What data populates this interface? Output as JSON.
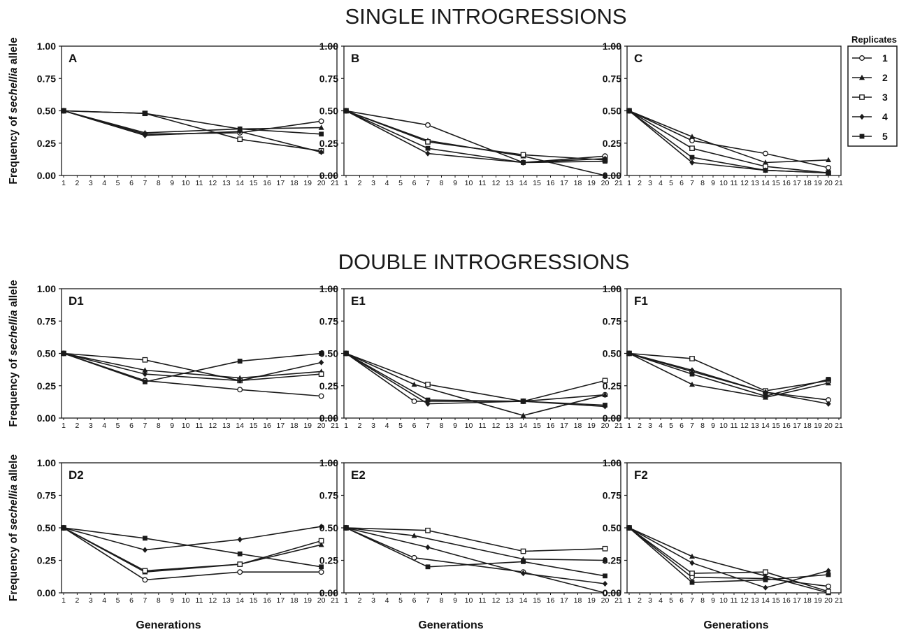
{
  "titles": {
    "single": "SINGLE INTROGRESSIONS",
    "double": "DOUBLE INTROGRESSIONS"
  },
  "y_axis_label": {
    "prefix": "Frequency of ",
    "italic": "sechellia",
    "suffix": " allele"
  },
  "x_axis_label": "Generations",
  "legend": {
    "title": "Replicates",
    "entries": [
      "1",
      "2",
      "3",
      "4",
      "5"
    ],
    "markers": [
      "open-circle",
      "filled-triangle",
      "open-square",
      "filled-diamond",
      "filled-square"
    ]
  },
  "line_color": "#1a1a1a",
  "chart_data": [
    {
      "type": "line",
      "label": "A",
      "x": [
        1,
        7,
        14,
        20
      ],
      "xlim": [
        1,
        21
      ],
      "ylim": [
        0,
        1
      ],
      "yticks": [
        "0.00",
        "0.25",
        "0.50",
        "0.75",
        "1.00"
      ],
      "xticks": [
        "1",
        "2",
        "3",
        "4",
        "5",
        "6",
        "7",
        "8",
        "9",
        "10",
        "11",
        "12",
        "13",
        "14",
        "15",
        "16",
        "17",
        "18",
        "19",
        "20",
        "21"
      ],
      "series": [
        {
          "name": "1",
          "values": [
            0.5,
            0.32,
            0.33,
            0.42
          ]
        },
        {
          "name": "2",
          "values": [
            0.5,
            0.33,
            0.36,
            0.37
          ]
        },
        {
          "name": "3",
          "values": [
            0.5,
            0.48,
            0.28,
            0.19
          ]
        },
        {
          "name": "4",
          "values": [
            0.5,
            0.31,
            0.34,
            0.18
          ]
        },
        {
          "name": "5",
          "values": [
            0.5,
            0.48,
            0.36,
            0.32
          ]
        }
      ]
    },
    {
      "type": "line",
      "label": "B",
      "x": [
        1,
        7,
        14,
        20
      ],
      "xlim": [
        1,
        21
      ],
      "ylim": [
        0,
        1
      ],
      "yticks": [
        "0.00",
        "0.25",
        "0.50",
        "0.75",
        "1.00"
      ],
      "xticks": [
        "1",
        "2",
        "3",
        "4",
        "5",
        "6",
        "7",
        "8",
        "9",
        "10",
        "11",
        "12",
        "13",
        "14",
        "15",
        "16",
        "17",
        "18",
        "19",
        "20",
        "21"
      ],
      "series": [
        {
          "name": "1",
          "values": [
            0.5,
            0.39,
            0.1,
            0.15
          ]
        },
        {
          "name": "2",
          "values": [
            0.5,
            0.27,
            0.15,
            0.0
          ]
        },
        {
          "name": "3",
          "values": [
            0.5,
            0.26,
            0.16,
            0.12
          ]
        },
        {
          "name": "4",
          "values": [
            0.5,
            0.17,
            0.1,
            0.13
          ]
        },
        {
          "name": "5",
          "values": [
            0.5,
            0.21,
            0.1,
            0.11
          ]
        }
      ]
    },
    {
      "type": "line",
      "label": "C",
      "x": [
        1,
        7,
        14,
        20
      ],
      "xlim": [
        1,
        21
      ],
      "ylim": [
        0,
        1
      ],
      "yticks": [
        "0.00",
        "0.25",
        "0.50",
        "0.75",
        "1.00"
      ],
      "xticks": [
        "1",
        "2",
        "3",
        "4",
        "5",
        "6",
        "7",
        "8",
        "9",
        "10",
        "11",
        "12",
        "13",
        "14",
        "15",
        "16",
        "17",
        "18",
        "19",
        "20",
        "21"
      ],
      "series": [
        {
          "name": "1",
          "values": [
            0.5,
            0.27,
            0.17,
            0.06
          ]
        },
        {
          "name": "2",
          "values": [
            0.5,
            0.3,
            0.1,
            0.12
          ]
        },
        {
          "name": "3",
          "values": [
            0.5,
            0.21,
            0.07,
            0.02
          ]
        },
        {
          "name": "4",
          "values": [
            0.5,
            0.1,
            0.04,
            0.02
          ]
        },
        {
          "name": "5",
          "values": [
            0.5,
            0.14,
            0.04,
            0.02
          ]
        }
      ]
    },
    {
      "type": "line",
      "label": "D1",
      "x": [
        1,
        7,
        14,
        20
      ],
      "xlim": [
        1,
        21
      ],
      "ylim": [
        0,
        1
      ],
      "yticks": [
        "0.00",
        "0.25",
        "0.50",
        "0.75",
        "1.00"
      ],
      "xticks": [
        "1",
        "2",
        "3",
        "4",
        "5",
        "6",
        "7",
        "8",
        "9",
        "10",
        "11",
        "12",
        "13",
        "14",
        "15",
        "16",
        "17",
        "18",
        "19",
        "20",
        "21"
      ],
      "series": [
        {
          "name": "1",
          "values": [
            0.5,
            0.29,
            0.22,
            0.17
          ]
        },
        {
          "name": "2",
          "values": [
            0.5,
            0.37,
            0.31,
            0.36
          ]
        },
        {
          "name": "3",
          "values": [
            0.5,
            0.45,
            0.29,
            0.34
          ]
        },
        {
          "name": "4",
          "values": [
            0.5,
            0.34,
            0.29,
            0.43
          ]
        },
        {
          "name": "5",
          "values": [
            0.5,
            0.28,
            0.44,
            0.5
          ]
        }
      ]
    },
    {
      "type": "line",
      "label": "E1",
      "x": [
        1,
        6,
        7,
        14,
        20
      ],
      "xlim": [
        1,
        21
      ],
      "ylim": [
        0,
        1
      ],
      "yticks": [
        "0.00",
        "0.25",
        "0.50",
        "0.75",
        "1.00"
      ],
      "xticks": [
        "1",
        "2",
        "3",
        "4",
        "5",
        "6",
        "7",
        "8",
        "9",
        "10",
        "11",
        "12",
        "13",
        "14",
        "15",
        "16",
        "17",
        "18",
        "19",
        "20",
        "21"
      ],
      "series": [
        {
          "name": "1",
          "x": [
            1,
            6,
            14,
            20
          ],
          "values": [
            0.5,
            0.13,
            0.13,
            0.18
          ]
        },
        {
          "name": "2",
          "x": [
            1,
            6,
            14,
            20
          ],
          "values": [
            0.5,
            0.26,
            0.02,
            0.18
          ]
        },
        {
          "name": "3",
          "x": [
            1,
            7,
            14,
            20
          ],
          "values": [
            0.5,
            0.26,
            0.13,
            0.29
          ]
        },
        {
          "name": "4",
          "x": [
            1,
            7,
            14,
            20
          ],
          "values": [
            0.5,
            0.11,
            0.13,
            0.09
          ]
        },
        {
          "name": "5",
          "x": [
            1,
            7,
            14,
            20
          ],
          "values": [
            0.5,
            0.14,
            0.13,
            0.1
          ]
        }
      ]
    },
    {
      "type": "line",
      "label": "F1",
      "x": [
        1,
        7,
        14,
        20
      ],
      "xlim": [
        1,
        21
      ],
      "ylim": [
        0,
        1
      ],
      "yticks": [
        "0.00",
        "0.25",
        "0.50",
        "0.75",
        "1.00"
      ],
      "xticks": [
        "1",
        "2",
        "3",
        "4",
        "5",
        "6",
        "7",
        "8",
        "9",
        "10",
        "11",
        "12",
        "13",
        "14",
        "15",
        "16",
        "17",
        "18",
        "19",
        "20",
        "21"
      ],
      "series": [
        {
          "name": "1",
          "values": [
            0.5,
            0.36,
            0.2,
            0.14
          ]
        },
        {
          "name": "2",
          "values": [
            0.5,
            0.26,
            0.16,
            0.27
          ]
        },
        {
          "name": "3",
          "values": [
            0.5,
            0.46,
            0.21,
            0.29
          ]
        },
        {
          "name": "4",
          "values": [
            0.5,
            0.37,
            0.2,
            0.11
          ]
        },
        {
          "name": "5",
          "values": [
            0.5,
            0.34,
            0.17,
            0.3
          ]
        }
      ]
    },
    {
      "type": "line",
      "label": "D2",
      "x": [
        1,
        7,
        14,
        20
      ],
      "xlim": [
        1,
        21
      ],
      "ylim": [
        0,
        1
      ],
      "yticks": [
        "0.00",
        "0.25",
        "0.50",
        "0.75",
        "1.00"
      ],
      "xticks": [
        "1",
        "2",
        "3",
        "4",
        "5",
        "6",
        "7",
        "8",
        "9",
        "10",
        "11",
        "12",
        "13",
        "14",
        "15",
        "16",
        "17",
        "18",
        "19",
        "20",
        "21"
      ],
      "series": [
        {
          "name": "1",
          "values": [
            0.5,
            0.1,
            0.16,
            0.16
          ]
        },
        {
          "name": "2",
          "values": [
            0.5,
            0.16,
            0.22,
            0.37
          ]
        },
        {
          "name": "3",
          "values": [
            0.5,
            0.17,
            0.22,
            0.4
          ]
        },
        {
          "name": "4",
          "values": [
            0.5,
            0.33,
            0.41,
            0.51
          ]
        },
        {
          "name": "5",
          "values": [
            0.5,
            0.42,
            0.3,
            0.2
          ]
        }
      ]
    },
    {
      "type": "line",
      "label": "E2",
      "x": [
        1,
        6,
        7,
        14,
        20
      ],
      "xlim": [
        1,
        21
      ],
      "ylim": [
        0,
        1
      ],
      "yticks": [
        "0.00",
        "0.25",
        "0.50",
        "0.75",
        "1.00"
      ],
      "xticks": [
        "1",
        "2",
        "3",
        "4",
        "5",
        "6",
        "7",
        "8",
        "9",
        "10",
        "11",
        "12",
        "13",
        "14",
        "15",
        "16",
        "17",
        "18",
        "19",
        "20",
        "21"
      ],
      "series": [
        {
          "name": "1",
          "x": [
            1,
            6,
            14,
            20
          ],
          "values": [
            0.5,
            0.27,
            0.16,
            0.0
          ]
        },
        {
          "name": "2",
          "x": [
            1,
            6,
            14,
            20
          ],
          "values": [
            0.5,
            0.44,
            0.26,
            0.25
          ]
        },
        {
          "name": "3",
          "x": [
            1,
            7,
            14,
            20
          ],
          "values": [
            0.5,
            0.48,
            0.32,
            0.34
          ]
        },
        {
          "name": "4",
          "x": [
            1,
            7,
            14,
            20
          ],
          "values": [
            0.5,
            0.35,
            0.15,
            0.07
          ]
        },
        {
          "name": "5",
          "x": [
            1,
            7,
            14,
            20
          ],
          "values": [
            0.5,
            0.2,
            0.24,
            0.13
          ]
        }
      ]
    },
    {
      "type": "line",
      "label": "F2",
      "x": [
        1,
        7,
        14,
        20
      ],
      "xlim": [
        1,
        21
      ],
      "ylim": [
        0,
        1
      ],
      "yticks": [
        "0.00",
        "0.25",
        "0.50",
        "0.75",
        "1.00"
      ],
      "xticks": [
        "1",
        "2",
        "3",
        "4",
        "5",
        "6",
        "7",
        "8",
        "9",
        "10",
        "11",
        "12",
        "13",
        "14",
        "15",
        "16",
        "17",
        "18",
        "19",
        "20",
        "21"
      ],
      "series": [
        {
          "name": "1",
          "values": [
            0.5,
            0.12,
            0.11,
            0.05
          ]
        },
        {
          "name": "2",
          "values": [
            0.5,
            0.28,
            0.13,
            0.0
          ]
        },
        {
          "name": "3",
          "values": [
            0.5,
            0.15,
            0.16,
            0.01
          ]
        },
        {
          "name": "4",
          "values": [
            0.5,
            0.23,
            0.04,
            0.17
          ]
        },
        {
          "name": "5",
          "values": [
            0.5,
            0.08,
            0.1,
            0.14
          ]
        }
      ]
    }
  ]
}
